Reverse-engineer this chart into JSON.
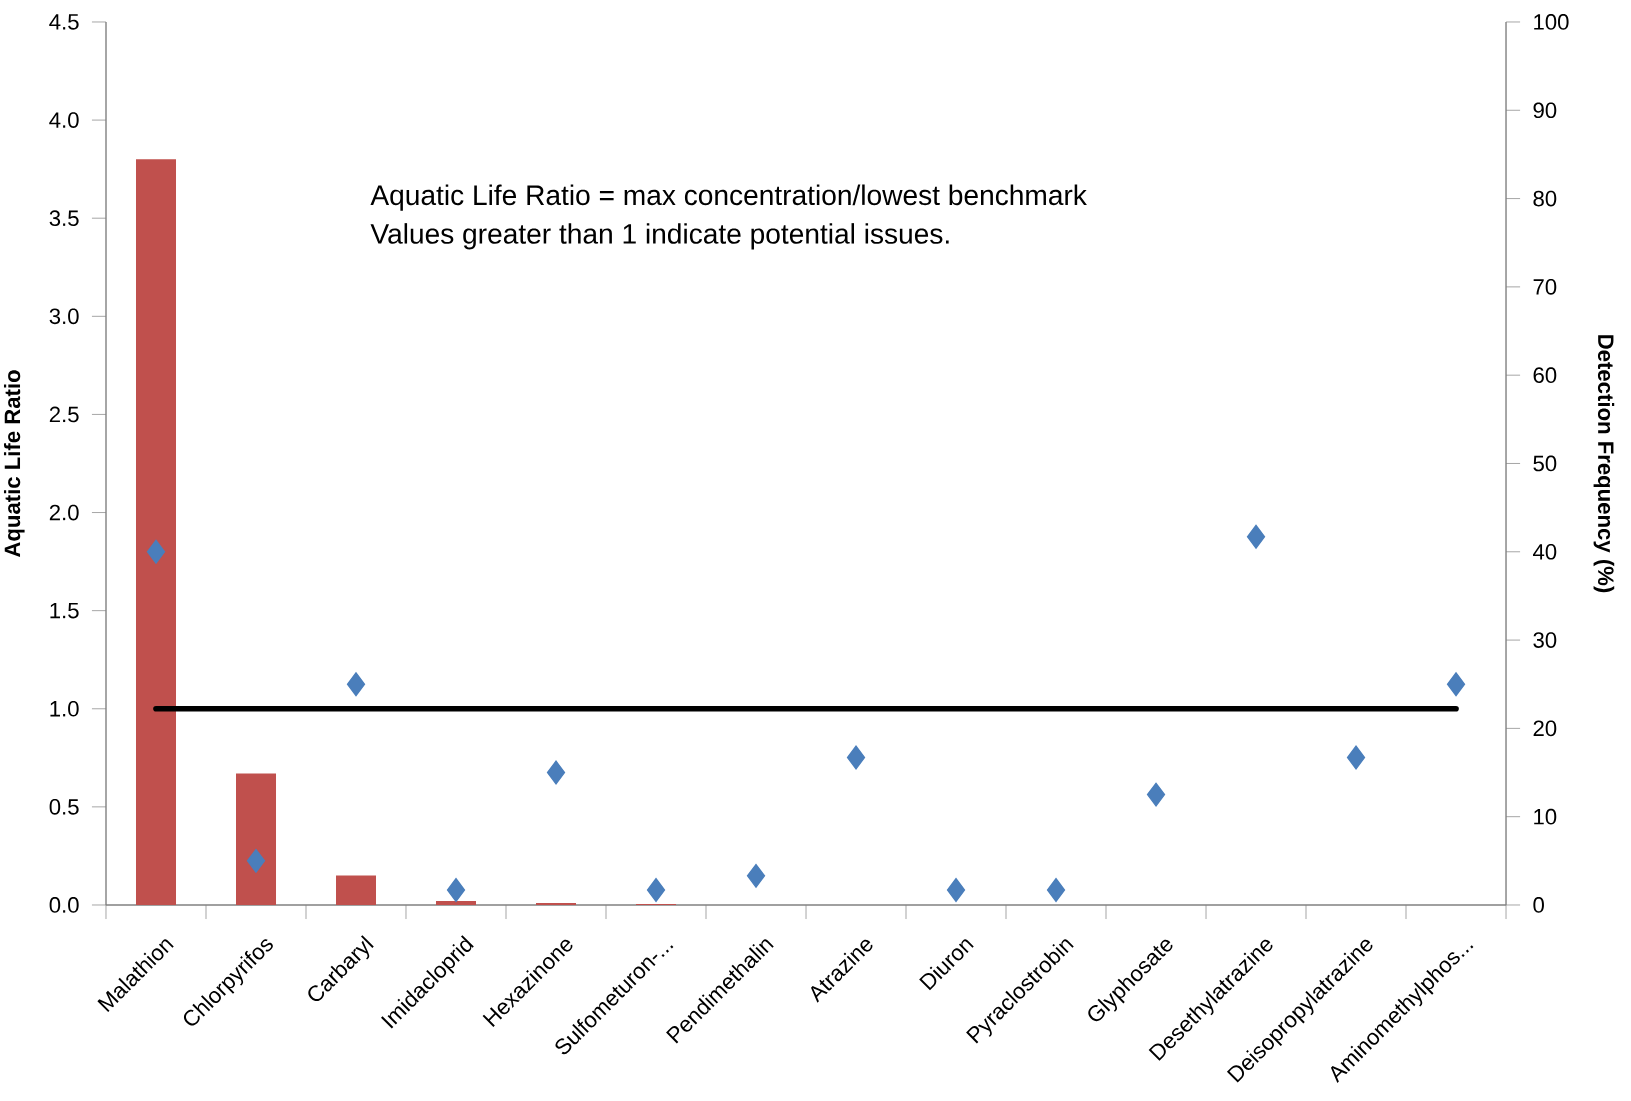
{
  "chart_data": {
    "type": "bar",
    "categories": [
      "Malathion",
      "Chlorpyrifos",
      "Carbaryl",
      "Imidacloprid",
      "Hexazinone",
      "Sulfometuron-...",
      "Pendimethalin",
      "Atrazine",
      "Diuron",
      "Pyraclostrobin",
      "Glyphosate",
      "Desethylatrazine",
      "Deisopropylatrazine",
      "Aminomethylphos..."
    ],
    "series": [
      {
        "color": "#c0504d",
        "values": [
          3.8,
          0.67,
          0.15,
          0.02,
          0.01,
          0.005,
          0,
          0,
          0,
          0,
          0,
          0,
          0,
          0
        ]
      },
      {
        "type": "line",
        "color": "#000000",
        "values": [
          1,
          1,
          1,
          1,
          1,
          1,
          1,
          1,
          1,
          1,
          1,
          1,
          1,
          1
        ]
      },
      {
        "type": "scatter",
        "axis": "y2",
        "marker": "diamond",
        "color": "#4a7ebb",
        "values": [
          40,
          5,
          25,
          1.7,
          15,
          1.7,
          3.3,
          16.7,
          1.7,
          1.7,
          12.5,
          41.7,
          16.7,
          25
        ]
      }
    ],
    "ylabel": "Aquatic Life Ratio",
    "y2label": "Detection Frequency (%)",
    "ylim": [
      0,
      4.5
    ],
    "yticks": [
      {
        "value": 0,
        "label": "0.0"
      },
      0.5,
      {
        "value": 1,
        "label": "1.0"
      },
      1.5,
      {
        "value": 2,
        "label": "2.0"
      },
      2.5,
      {
        "value": 3,
        "label": "3.0"
      },
      3.5,
      {
        "value": 4,
        "label": "4.0"
      },
      4.5
    ],
    "y2lim": [
      0,
      100
    ],
    "y2ticks": [
      0,
      10,
      20,
      30,
      40,
      50,
      60,
      70,
      80,
      90,
      100
    ],
    "annotations": [
      "Aquatic Life Ratio = max concentration/lowest benchmark",
      "Values greater than 1 indicate potential issues."
    ]
  }
}
